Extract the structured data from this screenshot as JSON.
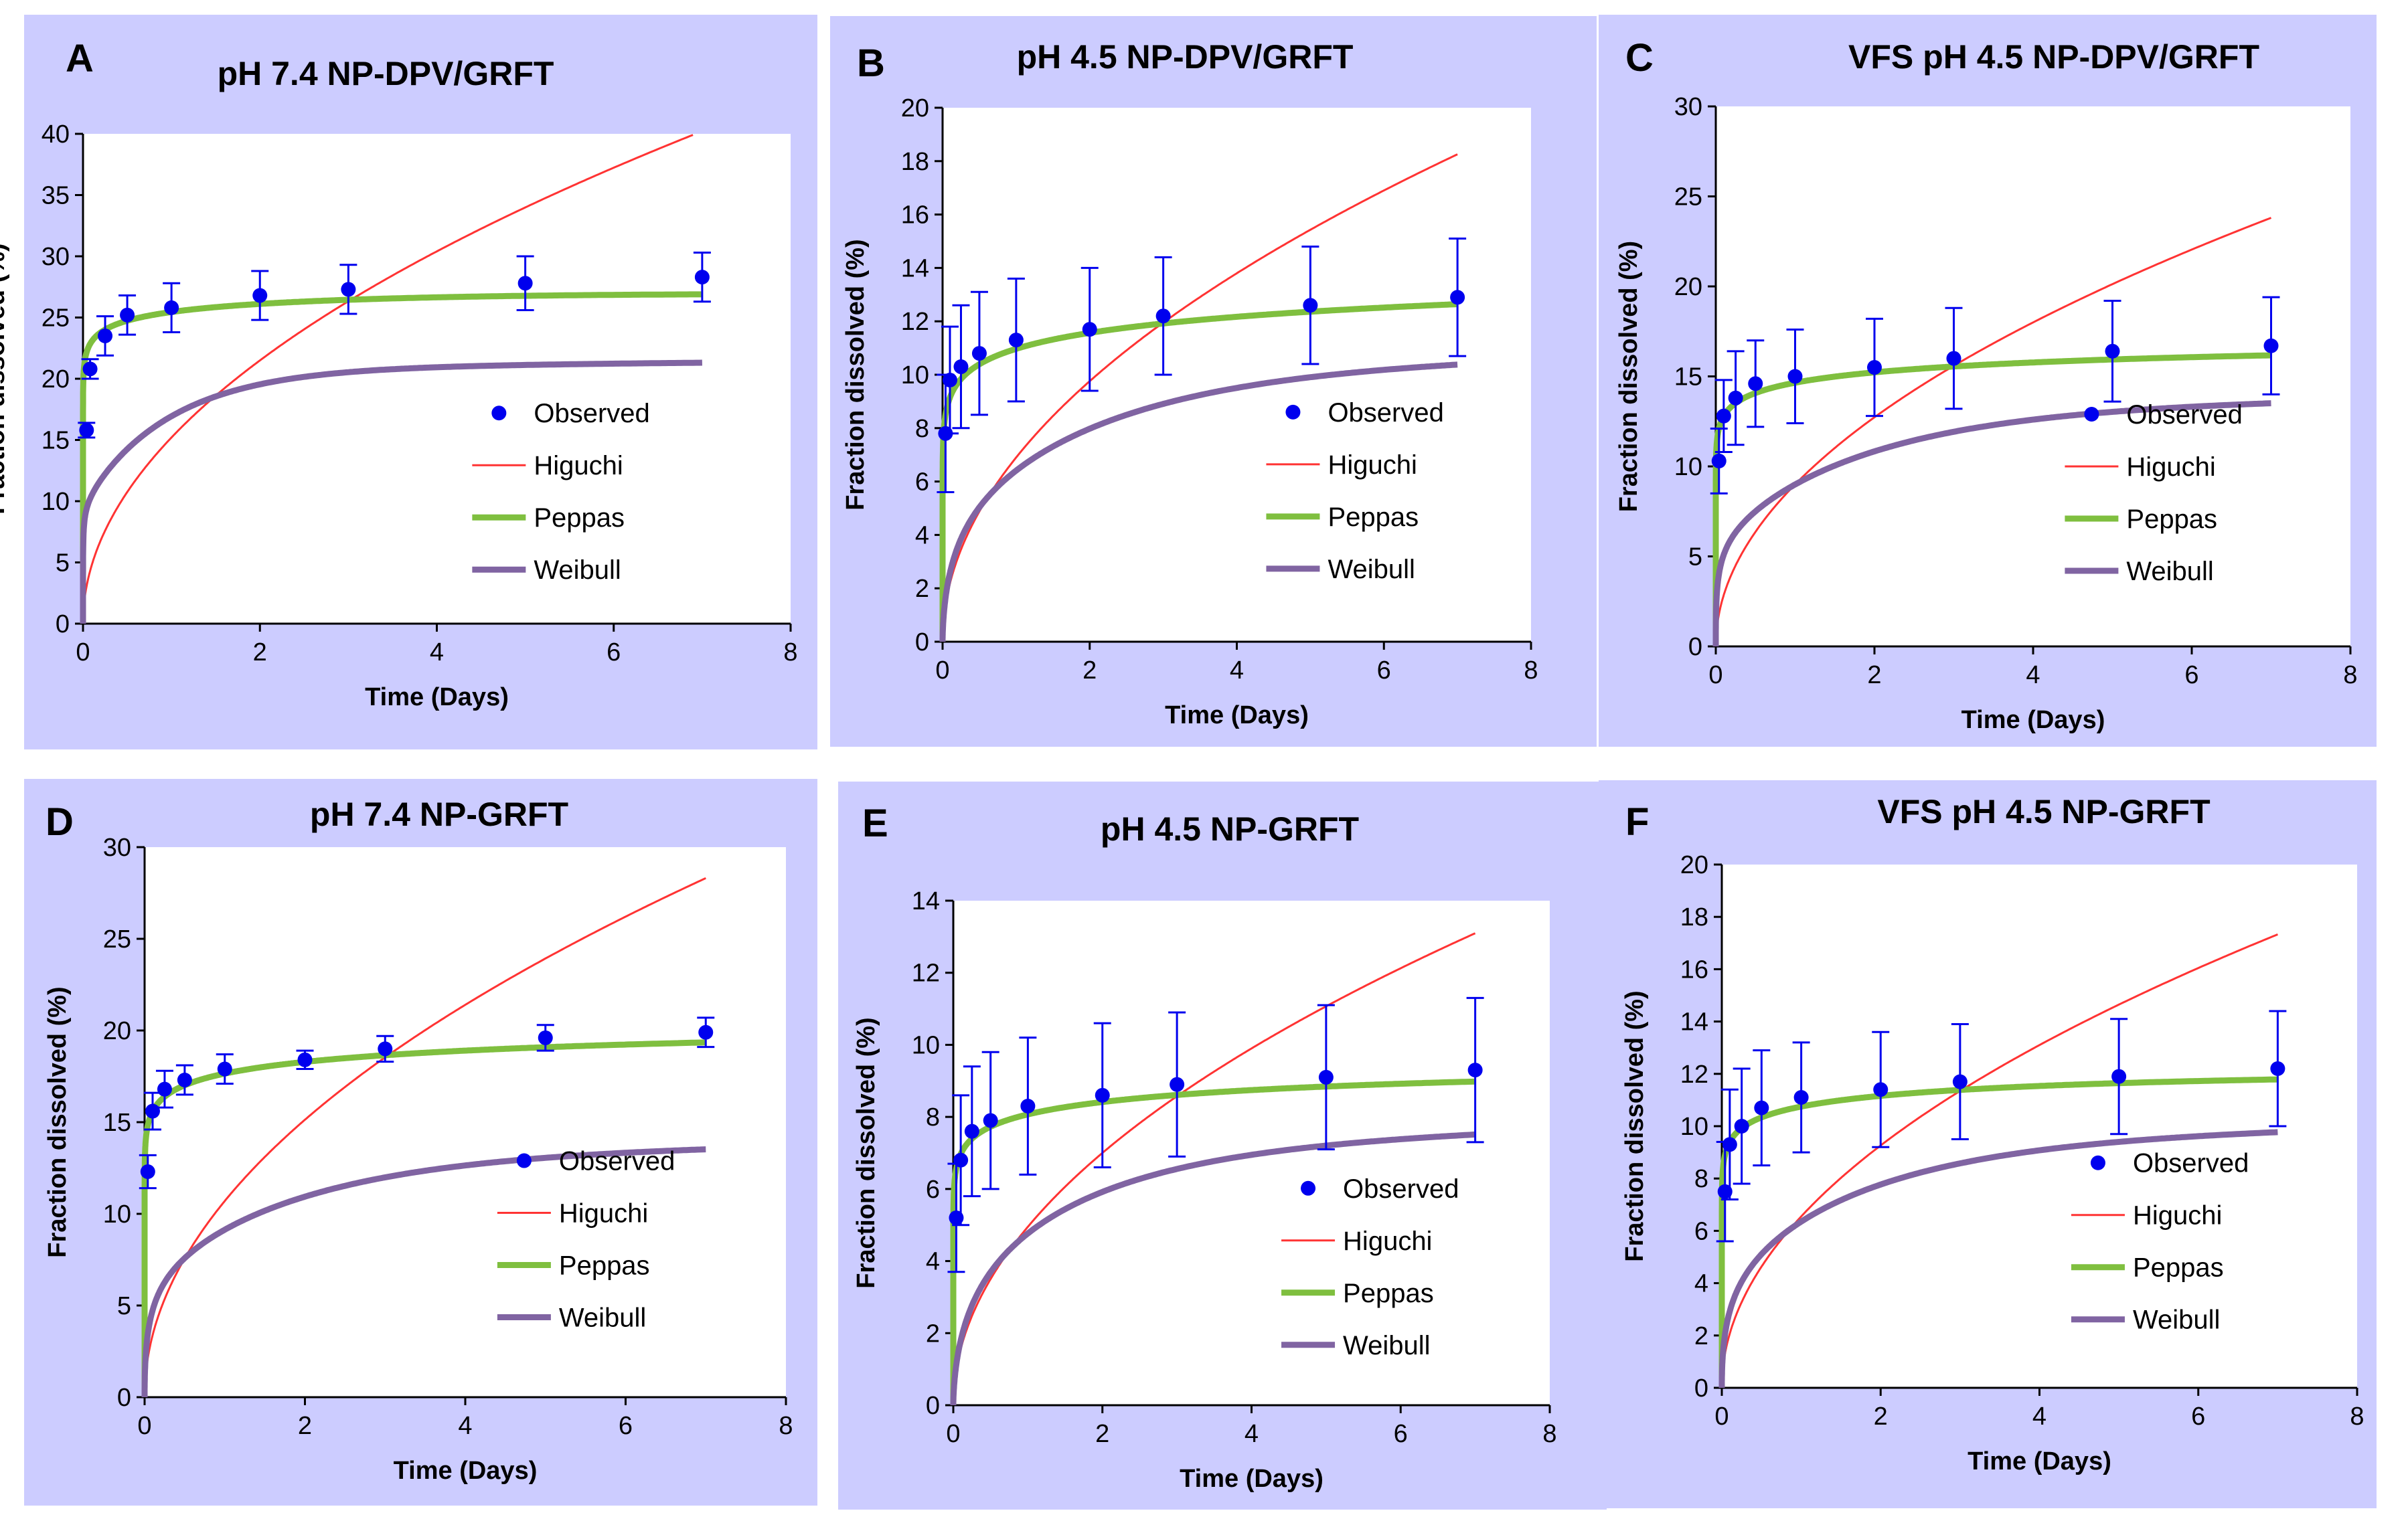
{
  "colors": {
    "panel_background": "#ccccff",
    "observed": "#0000ee",
    "higuchi": "#ff3333",
    "peppas": "#7fbf3f",
    "weibull": "#8064a2"
  },
  "chart_data": [
    {
      "type": "line",
      "panel_label": "A",
      "title": "pH 7.4 NP-DPV/GRFT",
      "xlabel": "Time (Days)",
      "ylabel": "Fraction dissolved (%)",
      "xlim": [
        0,
        8
      ],
      "ylim": [
        0,
        40
      ],
      "xticks": [
        0,
        2,
        4,
        6,
        8
      ],
      "yticks": [
        0,
        5,
        10,
        15,
        20,
        25,
        30,
        35,
        40
      ],
      "legend": [
        "Observed",
        "Higuchi",
        "Peppas",
        "Weibull"
      ],
      "legend_position": "center-right",
      "observed": {
        "x": [
          0.04,
          0.08,
          0.25,
          0.5,
          1,
          2,
          3,
          5,
          7
        ],
        "y": [
          15.8,
          20.8,
          23.5,
          25.2,
          25.8,
          26.8,
          27.3,
          27.8,
          28.3
        ],
        "err": [
          0.6,
          0.8,
          1.6,
          1.6,
          2.0,
          2.0,
          2.0,
          2.2,
          2.0
        ]
      },
      "higuchi_k": 15.2,
      "peppas": {
        "k": 25.6,
        "n": 0.045,
        "decline": 0.15
      },
      "weibull": {
        "a": 10.1,
        "b": 10.8,
        "c": 5.3,
        "d": 0.28,
        "k": 1.0
      }
    },
    {
      "type": "line",
      "panel_label": "B",
      "title": "pH 4.5 NP-DPV/GRFT",
      "xlabel": "Time (Days)",
      "ylabel": "Fraction dissolved (%)",
      "xlim": [
        0,
        8
      ],
      "ylim": [
        0,
        20
      ],
      "xticks": [
        0,
        2,
        4,
        6,
        8
      ],
      "yticks": [
        0,
        2,
        4,
        6,
        8,
        10,
        12,
        14,
        16,
        18,
        20
      ],
      "legend": [
        "Observed",
        "Higuchi",
        "Peppas",
        "Weibull"
      ],
      "legend_position": "center-right",
      "observed": {
        "x": [
          0.04,
          0.1,
          0.25,
          0.5,
          1,
          2,
          3,
          5,
          7
        ],
        "y": [
          7.8,
          9.8,
          10.3,
          10.8,
          11.3,
          11.7,
          12.2,
          12.6,
          12.9
        ],
        "err": [
          2.2,
          2.0,
          2.3,
          2.3,
          2.3,
          2.3,
          2.2,
          2.2,
          2.2
        ]
      },
      "higuchi_k": 6.9,
      "peppas": {
        "k": 11.0,
        "n": 0.08,
        "decline": 0.03
      },
      "weibull": {
        "a": 4.6,
        "b": 5.6,
        "c": 2.8,
        "d": 0.6,
        "k": 0.45
      }
    },
    {
      "type": "line",
      "panel_label": "C",
      "title": "VFS pH 4.5 NP-DPV/GRFT",
      "xlabel": "Time (Days)",
      "ylabel": "Fraction dissolved (%)",
      "xlim": [
        0,
        8
      ],
      "ylim": [
        0,
        30
      ],
      "xticks": [
        0,
        2,
        4,
        6,
        8
      ],
      "yticks": [
        0,
        5,
        10,
        15,
        20,
        25,
        30
      ],
      "legend": [
        "Observed",
        "Higuchi",
        "Peppas",
        "Weibull"
      ],
      "legend_position": "center-right",
      "observed": {
        "x": [
          0.04,
          0.1,
          0.25,
          0.5,
          1,
          2,
          3,
          5,
          7
        ],
        "y": [
          10.3,
          12.8,
          13.8,
          14.6,
          15.0,
          15.5,
          16.0,
          16.4,
          16.7
        ],
        "err": [
          1.8,
          2.0,
          2.6,
          2.4,
          2.6,
          2.7,
          2.8,
          2.8,
          2.7
        ]
      },
      "higuchi_k": 9.0,
      "peppas": {
        "k": 14.7,
        "n": 0.06,
        "decline": 0.05
      },
      "weibull": {
        "a": 6.5,
        "b": 6.8,
        "c": 3.3,
        "d": 0.4,
        "k": 0.5
      }
    },
    {
      "type": "line",
      "panel_label": "D",
      "title": "pH 7.4  NP-GRFT",
      "xlabel": "Time (Days)",
      "ylabel": "Fraction dissolved (%)",
      "xlim": [
        0,
        8
      ],
      "ylim": [
        0,
        30
      ],
      "xticks": [
        0,
        2,
        4,
        6,
        8
      ],
      "yticks": [
        0,
        5,
        10,
        15,
        20,
        25,
        30
      ],
      "legend": [
        "Observed",
        "Higuchi",
        "Peppas",
        "Weibull"
      ],
      "legend_position": "center-right",
      "observed": {
        "x": [
          0.04,
          0.1,
          0.25,
          0.5,
          1,
          2,
          3,
          5,
          7
        ],
        "y": [
          12.3,
          15.6,
          16.8,
          17.3,
          17.9,
          18.4,
          19.0,
          19.6,
          19.9
        ],
        "err": [
          0.9,
          1.0,
          1.0,
          0.8,
          0.8,
          0.5,
          0.7,
          0.7,
          0.8
        ]
      },
      "higuchi_k": 10.7,
      "peppas": {
        "k": 17.7,
        "n": 0.055,
        "decline": 0.05
      },
      "weibull": {
        "a": 6.7,
        "b": 6.6,
        "c": 3.4,
        "d": 0.5,
        "k": 0.5
      }
    },
    {
      "type": "line",
      "panel_label": "E",
      "title": "pH 4.5 NP-GRFT",
      "xlabel": "Time (Days)",
      "ylabel": "Fraction dissolved (%)",
      "xlim": [
        0,
        8
      ],
      "ylim": [
        0,
        14
      ],
      "xticks": [
        0,
        2,
        4,
        6,
        8
      ],
      "yticks": [
        0,
        2,
        4,
        6,
        8,
        10,
        12,
        14
      ],
      "legend": [
        "Observed",
        "Higuchi",
        "Peppas",
        "Weibull"
      ],
      "legend_position": "center-right",
      "observed": {
        "x": [
          0.04,
          0.1,
          0.25,
          0.5,
          1,
          2,
          3,
          5,
          7
        ],
        "y": [
          5.2,
          6.8,
          7.6,
          7.9,
          8.3,
          8.6,
          8.9,
          9.1,
          9.3
        ],
        "err": [
          1.5,
          1.8,
          1.8,
          1.9,
          1.9,
          2.0,
          2.0,
          2.0,
          2.0
        ]
      },
      "higuchi_k": 4.95,
      "peppas": {
        "k": 8.1,
        "n": 0.065,
        "decline": 0.03
      },
      "weibull": {
        "a": 3.7,
        "b": 3.5,
        "c": 2.3,
        "d": 0.6,
        "k": 0.5
      }
    },
    {
      "type": "line",
      "panel_label": "F",
      "title": "VFS pH 4.5 NP-GRFT",
      "xlabel": "Time (Days)",
      "ylabel": "Fraction dissolved (%)",
      "xlim": [
        0,
        8
      ],
      "ylim": [
        0,
        20
      ],
      "xticks": [
        0,
        2,
        4,
        6,
        8
      ],
      "yticks": [
        0,
        2,
        4,
        6,
        8,
        10,
        12,
        14,
        16,
        18,
        20
      ],
      "legend": [
        "Observed",
        "Higuchi",
        "Peppas",
        "Weibull"
      ],
      "legend_position": "center-right",
      "observed": {
        "x": [
          0.04,
          0.1,
          0.25,
          0.5,
          1,
          2,
          3,
          5,
          7
        ],
        "y": [
          7.5,
          9.3,
          10.0,
          10.7,
          11.1,
          11.4,
          11.7,
          11.9,
          12.2
        ],
        "err": [
          1.9,
          2.1,
          2.2,
          2.2,
          2.1,
          2.2,
          2.2,
          2.2,
          2.2
        ]
      },
      "higuchi_k": 6.55,
      "peppas": {
        "k": 10.8,
        "n": 0.06,
        "decline": 0.05
      },
      "weibull": {
        "a": 4.8,
        "b": 4.7,
        "c": 2.6,
        "d": 0.5,
        "k": 0.5
      }
    }
  ]
}
